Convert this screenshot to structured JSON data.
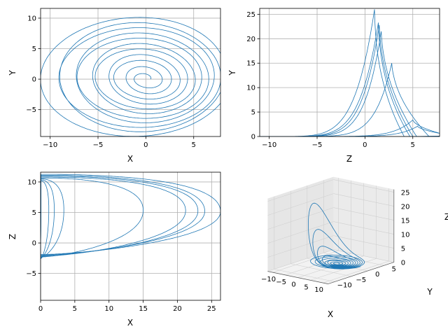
{
  "chart_data": [
    {
      "type": "line",
      "panel": "top-left",
      "xlabel": "X",
      "ylabel": "Y",
      "xlim": [
        -11,
        7.8
      ],
      "ylim": [
        -9.4,
        11.6
      ],
      "xticks": [
        -10,
        -5,
        0,
        5
      ],
      "yticks": [
        -5,
        0,
        5,
        10
      ],
      "xtick_labels": [
        "−10",
        "−5",
        "0",
        "5"
      ],
      "ytick_labels": [
        "−5",
        "0",
        "5",
        "10"
      ],
      "grid": true,
      "color": "#1f77b4",
      "description_series": "phase trajectory Y vs X, outward spiral from origin"
    },
    {
      "type": "line",
      "panel": "top-right",
      "xlabel": "Z",
      "ylabel": "Y",
      "xlim": [
        -11,
        7.8
      ],
      "ylim": [
        0,
        26.2
      ],
      "xticks": [
        -10,
        -5,
        0,
        5
      ],
      "yticks": [
        0,
        5,
        10,
        15,
        20,
        25
      ],
      "xtick_labels": [
        "−10",
        "−5",
        "0",
        "5"
      ],
      "ytick_labels": [
        "0",
        "5",
        "10",
        "15",
        "20",
        "25"
      ],
      "grid": true,
      "color": "#1f77b4",
      "peaks": [
        {
          "x": 1.0,
          "y": 26
        },
        {
          "x": 1.4,
          "y": 23.3
        },
        {
          "x": 1.5,
          "y": 22.8
        },
        {
          "x": 1.7,
          "y": 21.5
        },
        {
          "x": 2.8,
          "y": 15
        },
        {
          "x": 5.0,
          "y": 3.4
        },
        {
          "x": 5.5,
          "y": 2.1
        }
      ]
    },
    {
      "type": "line",
      "panel": "bottom-left",
      "xlabel": "X",
      "ylabel": "Z",
      "xlim": [
        0,
        26.3
      ],
      "ylim": [
        -9.4,
        11.6
      ],
      "xticks": [
        0,
        5,
        10,
        15,
        20,
        25
      ],
      "yticks": [
        -5,
        0,
        5,
        10
      ],
      "xtick_labels": [
        "0",
        "5",
        "10",
        "15",
        "20",
        "25"
      ],
      "ytick_labels": [
        "−5",
        "0",
        "5",
        "10"
      ],
      "grid": true,
      "color": "#1f77b4",
      "loop_extents": [
        1.2,
        2.0,
        3.4,
        15.0,
        21.2,
        23.0,
        24.0,
        26.3
      ]
    },
    {
      "type": "line",
      "panel": "bottom-right-3d",
      "xlabel": "X",
      "ylabel": "Y",
      "zlabel": "Z",
      "xticks_labels": [
        "−10",
        "−5",
        "0",
        "5",
        "10"
      ],
      "yticks_labels": [
        "−10",
        "−5",
        "0",
        "5"
      ],
      "zticks_labels": [
        "0",
        "5",
        "10",
        "15",
        "20",
        "25"
      ],
      "color": "#1f77b4"
    }
  ]
}
